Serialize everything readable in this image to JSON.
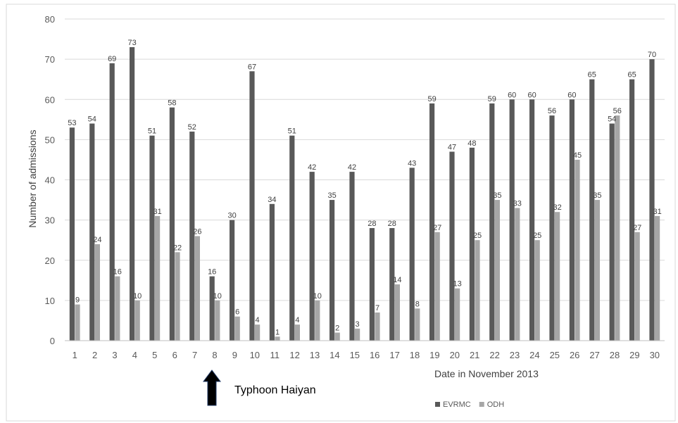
{
  "chart_data": {
    "type": "bar",
    "categories": [
      "1",
      "2",
      "3",
      "4",
      "5",
      "6",
      "7",
      "8",
      "9",
      "10",
      "11",
      "12",
      "13",
      "14",
      "15",
      "16",
      "17",
      "18",
      "19",
      "20",
      "21",
      "22",
      "23",
      "24",
      "25",
      "26",
      "27",
      "28",
      "29",
      "30"
    ],
    "series": [
      {
        "name": "EVRMC",
        "color": "#595959",
        "values": [
          53,
          54,
          69,
          73,
          51,
          58,
          52,
          16,
          30,
          67,
          34,
          51,
          42,
          35,
          42,
          28,
          28,
          43,
          59,
          47,
          48,
          59,
          60,
          60,
          56,
          60,
          65,
          54,
          65,
          70
        ]
      },
      {
        "name": "ODH",
        "color": "#a6a6a6",
        "values": [
          9,
          24,
          16,
          10,
          31,
          22,
          26,
          10,
          6,
          4,
          1,
          4,
          10,
          2,
          3,
          7,
          14,
          8,
          27,
          13,
          25,
          35,
          33,
          25,
          32,
          45,
          35,
          56,
          27,
          31
        ]
      }
    ],
    "xlabel": "Date in November 2013",
    "ylabel": "Number of admissions",
    "ylim": [
      0,
      80
    ],
    "yticks": [
      0,
      10,
      20,
      30,
      40,
      50,
      60,
      70,
      80
    ],
    "grid": true,
    "legend": "bottom-right",
    "annotation": {
      "label": "Typhoon Haiyan",
      "category": "8",
      "icon": "arrow-up-icon"
    }
  }
}
